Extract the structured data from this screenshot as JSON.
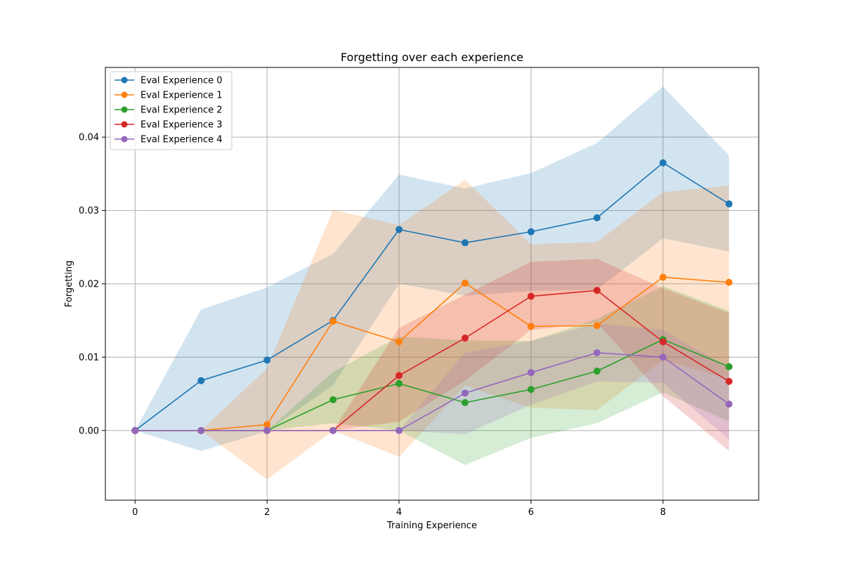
{
  "chart_data": {
    "type": "line",
    "title": "Forgetting over each experience",
    "xlabel": "Training Experience",
    "ylabel": "Forgetting",
    "xlim": [
      -0.45,
      9.45
    ],
    "ylim": [
      -0.0095,
      0.0495
    ],
    "xticks": [
      0,
      2,
      4,
      6,
      8
    ],
    "yticks": [
      0.0,
      0.01,
      0.02,
      0.03,
      0.04
    ],
    "ytick_labels": [
      "0.00",
      "0.01",
      "0.02",
      "0.03",
      "0.04"
    ],
    "grid": true,
    "legend_position": "top-left",
    "x": [
      0,
      1,
      2,
      3,
      4,
      5,
      6,
      7,
      8,
      9
    ],
    "series": [
      {
        "name": "Eval Experience 0",
        "color": "#1f77b4",
        "values": [
          0.0,
          0.0068,
          0.0096,
          0.015,
          0.0274,
          0.0256,
          0.0271,
          0.029,
          0.0365,
          0.0309
        ],
        "band_low": [
          0.0,
          -0.0028,
          -0.0001,
          0.0062,
          0.02,
          0.0184,
          0.019,
          0.0192,
          0.0262,
          0.0244
        ],
        "band_high": [
          0.0,
          0.0165,
          0.0195,
          0.0241,
          0.0349,
          0.033,
          0.0351,
          0.0392,
          0.0469,
          0.0375
        ]
      },
      {
        "name": "Eval Experience 1",
        "color": "#ff7f0e",
        "values": [
          0.0,
          0.0,
          0.0008,
          0.0149,
          0.0121,
          0.0201,
          0.0142,
          0.0143,
          0.0209,
          0.0202
        ],
        "band_low": [
          0.0,
          0.0,
          -0.0067,
          0.0,
          -0.0036,
          0.0061,
          0.0031,
          0.0028,
          0.0096,
          0.007
        ],
        "band_high": [
          0.0,
          0.0,
          0.0085,
          0.0301,
          0.028,
          0.0342,
          0.0254,
          0.0257,
          0.0325,
          0.0334
        ]
      },
      {
        "name": "Eval Experience 2",
        "color": "#2ca02c",
        "values": [
          0.0,
          0.0,
          0.0,
          0.0042,
          0.0064,
          0.0038,
          0.0056,
          0.0081,
          0.0124,
          0.0087
        ],
        "band_low": [
          0.0,
          0.0,
          0.0,
          0.001,
          0.0,
          -0.0047,
          -0.001,
          0.001,
          0.0052,
          0.0012
        ],
        "band_high": [
          0.0,
          0.0,
          0.0,
          0.008,
          0.0128,
          0.0123,
          0.0122,
          0.0152,
          0.0197,
          0.0163
        ]
      },
      {
        "name": "Eval Experience 3",
        "color": "#d62728",
        "values": [
          0.0,
          0.0,
          0.0,
          0.0,
          0.0075,
          0.0126,
          0.0183,
          0.0191,
          0.0121,
          0.0067
        ],
        "band_low": [
          0.0,
          0.0,
          0.0,
          0.0,
          0.0012,
          0.0068,
          0.0137,
          0.0147,
          0.0047,
          -0.0028
        ],
        "band_high": [
          0.0,
          0.0,
          0.0,
          0.0,
          0.014,
          0.0185,
          0.023,
          0.0234,
          0.0194,
          0.016
        ]
      },
      {
        "name": "Eval Experience 4",
        "color": "#9467bd",
        "values": [
          0.0,
          0.0,
          0.0,
          0.0,
          0.0,
          0.0051,
          0.0079,
          0.0106,
          0.01,
          0.0036
        ],
        "band_low": [
          0.0,
          0.0,
          0.0,
          0.0,
          0.0,
          -0.0005,
          0.0035,
          0.0067,
          0.0065,
          -0.0012
        ],
        "band_high": [
          0.0,
          0.0,
          0.0,
          0.0,
          0.0,
          0.0106,
          0.0122,
          0.0146,
          0.0137,
          0.0085
        ]
      }
    ]
  }
}
